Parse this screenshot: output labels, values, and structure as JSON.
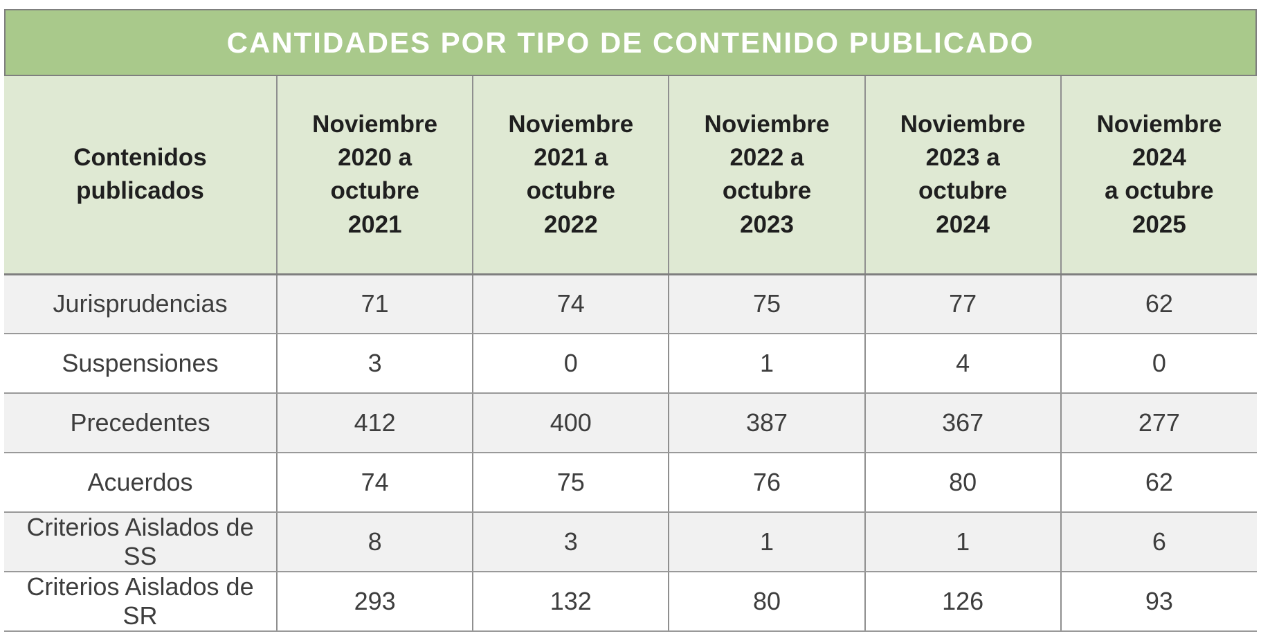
{
  "table": {
    "title": "CANTIDADES POR TIPO DE CONTENIDO PUBLICADO",
    "cols": [
      "Contenidos\npublicados",
      "Noviembre\n2020 a\noctubre\n2021",
      "Noviembre\n2021 a\noctubre\n2022",
      "Noviembre\n2022 a\noctubre\n2023",
      "Noviembre\n2023 a\noctubre\n2024",
      "Noviembre\n2024\na octubre\n2025"
    ],
    "rows": [
      {
        "label": "Jurisprudencias",
        "values": [
          "71",
          "74",
          "75",
          "77",
          "62"
        ]
      },
      {
        "label": "Suspensiones",
        "values": [
          "3",
          "0",
          "1",
          "4",
          "0"
        ]
      },
      {
        "label": "Precedentes",
        "values": [
          "412",
          "400",
          "387",
          "367",
          "277"
        ]
      },
      {
        "label": "Acuerdos",
        "values": [
          "74",
          "75",
          "76",
          "80",
          "62"
        ]
      },
      {
        "label": "Criterios Aislados de SS",
        "values": [
          "8",
          "3",
          "1",
          "1",
          "6"
        ]
      },
      {
        "label": "Criterios Aislados de SR",
        "values": [
          "293",
          "132",
          "80",
          "126",
          "93"
        ]
      }
    ]
  },
  "colors": {
    "title_bg": "#a9c98b",
    "header_bg": "#dfe9d3",
    "stripe_bg": "#f1f1f1",
    "border_gray": "#7f7f7f",
    "title_text": "#ffffff",
    "body_text": "#3d3d3d"
  },
  "chart_data": {
    "type": "table",
    "title": "CANTIDADES POR TIPO DE CONTENIDO PUBLICADO",
    "row_header": "Contenidos publicados",
    "columns": [
      "Noviembre 2020 a octubre 2021",
      "Noviembre 2021 a octubre 2022",
      "Noviembre 2022 a octubre 2023",
      "Noviembre 2023 a octubre 2024",
      "Noviembre 2024 a octubre 2025"
    ],
    "rows": [
      {
        "name": "Jurisprudencias",
        "values": [
          71,
          74,
          75,
          77,
          62
        ]
      },
      {
        "name": "Suspensiones",
        "values": [
          3,
          0,
          1,
          4,
          0
        ]
      },
      {
        "name": "Precedentes",
        "values": [
          412,
          400,
          387,
          367,
          277
        ]
      },
      {
        "name": "Acuerdos",
        "values": [
          74,
          75,
          76,
          80,
          62
        ]
      },
      {
        "name": "Criterios Aislados de SS",
        "values": [
          8,
          3,
          1,
          1,
          6
        ]
      },
      {
        "name": "Criterios Aislados de SR",
        "values": [
          293,
          132,
          80,
          126,
          93
        ]
      }
    ]
  }
}
